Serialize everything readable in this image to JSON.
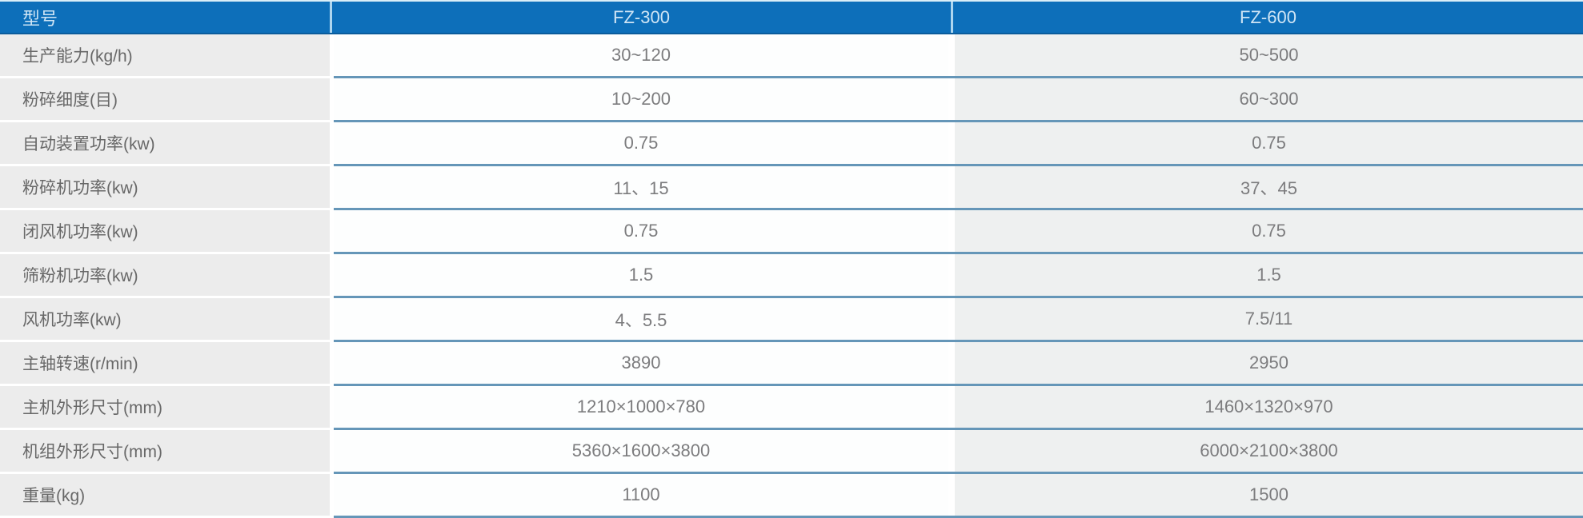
{
  "table": {
    "title": "machine-specification-table",
    "header": {
      "col0": "型号",
      "col1": "FZ-300",
      "col2": "FZ-600"
    },
    "rows": [
      {
        "label": "生产能力(kg/h)",
        "fz300": "30~120",
        "fz600": "50~500"
      },
      {
        "label": "粉碎细度(目)",
        "fz300": "10~200",
        "fz600": "60~300"
      },
      {
        "label": "自动装置功率(kw)",
        "fz300": "0.75",
        "fz600": "0.75"
      },
      {
        "label": "粉碎机功率(kw)",
        "fz300": "11、15",
        "fz600": "37、45"
      },
      {
        "label": "闭风机功率(kw)",
        "fz300": "0.75",
        "fz600": "0.75"
      },
      {
        "label": "筛粉机功率(kw)",
        "fz300": "1.5",
        "fz600": "1.5"
      },
      {
        "label": "风机功率(kw)",
        "fz300": "4、5.5",
        "fz600": "7.5/11"
      },
      {
        "label": "主轴转速(r/min)",
        "fz300": "3890",
        "fz600": "2950"
      },
      {
        "label": "主机外形尺寸(mm)",
        "fz300": "1210×1000×780",
        "fz600": "1460×1320×970"
      },
      {
        "label": "机组外形尺寸(mm)",
        "fz300": "5360×1600×3800",
        "fz600": "6000×2100×3800"
      },
      {
        "label": "重量(kg)",
        "fz300": "1100",
        "fz600": "1500"
      }
    ],
    "colors": {
      "header_bg": "#0d6fba",
      "header_text": "#cfe5f5",
      "header_separator": "#aed6ef",
      "label_column_bg": "#ececec",
      "fz300_column_bg": "#fdfefe",
      "fz600_column_bg": "#eef0f0",
      "row_separator_line": "#6596b8",
      "label_text": "#686868",
      "value_text": "#7c7c7e"
    }
  }
}
